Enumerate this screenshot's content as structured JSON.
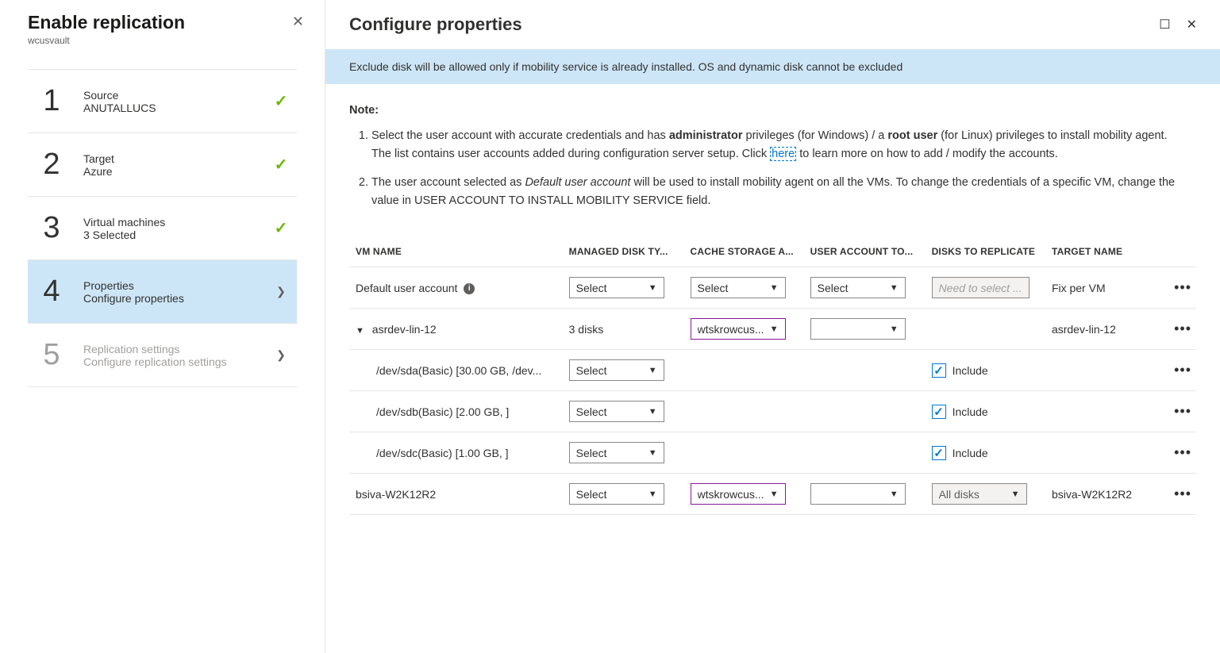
{
  "left": {
    "title": "Enable replication",
    "subtitle": "wcusvault",
    "steps": [
      {
        "num": "1",
        "title": "Source",
        "desc": "ANUTALLUCS",
        "done": true
      },
      {
        "num": "2",
        "title": "Target",
        "desc": "Azure",
        "done": true
      },
      {
        "num": "3",
        "title": "Virtual machines",
        "desc": "3 Selected",
        "done": true
      },
      {
        "num": "4",
        "title": "Properties",
        "desc": "Configure properties",
        "active": true
      },
      {
        "num": "5",
        "title": "Replication settings",
        "desc": "Configure replication settings",
        "disabled": true
      }
    ]
  },
  "right": {
    "title": "Configure properties",
    "info_bar": "Exclude disk will be allowed only if mobility service is already installed. OS and dynamic disk cannot be excluded",
    "note_label": "Note:",
    "note1_pre": "Select the user account with accurate credentials and has ",
    "note1_bold1": "administrator",
    "note1_mid": " privileges (for Windows) / a ",
    "note1_bold2": "root user",
    "note1_post": " (for Linux) privileges to install mobility agent. The list contains user accounts added during configuration server setup. Click ",
    "note1_link": "here",
    "note1_end": " to learn more on how to add / modify the accounts.",
    "note2_pre": "The user account selected as ",
    "note2_em": "Default user account",
    "note2_post": " will be used to install mobility agent on all the VMs. To change the credentials of a specific VM, change the value in USER ACCOUNT TO INSTALL MOBILITY SERVICE field."
  },
  "table": {
    "headers": {
      "vm": "VM NAME",
      "mdisk": "MANAGED DISK TY...",
      "cache": "CACHE STORAGE A...",
      "user": "USER ACCOUNT TO...",
      "repl": "DISKS TO REPLICATE",
      "tgt": "TARGET NAME"
    },
    "select_label": "Select",
    "rows": {
      "default": {
        "name": "Default user account",
        "repl_placeholder": "Need to select ...",
        "target": "Fix per VM"
      },
      "vm1": {
        "name": "asrdev-lin-12",
        "mdisk": "3 disks",
        "cache": "wtskrowcus...",
        "target": "asrdev-lin-12",
        "disks": [
          {
            "name": "/dev/sda(Basic) [30.00 GB, /dev...",
            "include": "Include"
          },
          {
            "name": "/dev/sdb(Basic) [2.00 GB, ]",
            "include": "Include"
          },
          {
            "name": "/dev/sdc(Basic) [1.00 GB, ]",
            "include": "Include"
          }
        ]
      },
      "vm2": {
        "name": "bsiva-W2K12R2",
        "cache": "wtskrowcus...",
        "repl": "All disks",
        "target": "bsiva-W2K12R2"
      }
    }
  }
}
